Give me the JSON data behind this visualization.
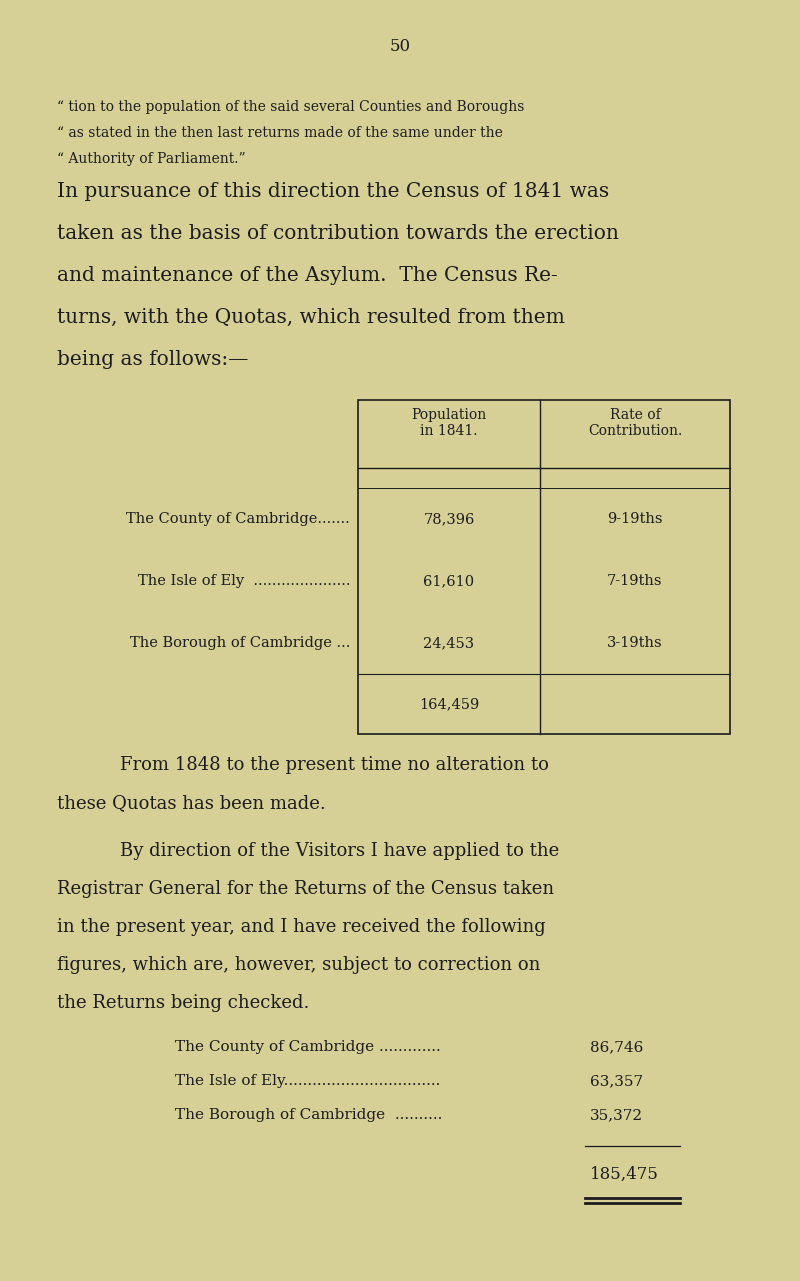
{
  "page_number": "50",
  "background_color": "#d6cf96",
  "text_color": "#1c1c1c",
  "page_width": 8.0,
  "page_height": 12.81,
  "dpi": 100,
  "small_text_lines": [
    "“ tion to the population of the said several Counties and Boroughs",
    "“ as stated in the then last returns made of the same under the",
    "“ Authority of Parliament.”"
  ],
  "large_para_lines": [
    "In pursuance of this direction the Census of 1841 was",
    "taken as the basis of contribution towards the erection",
    "and maintenance of the Asylum.  The Census Re-",
    "turns, with the Quotas, which resulted from them",
    "being as follows:—"
  ],
  "table_rows": [
    {
      "label": "The County of Cambridge.......",
      "pop": "78,396",
      "rate": "9-19ths"
    },
    {
      "label": "The Isle of Ely  .....................",
      "pop": "61,610",
      "rate": "7-19ths"
    },
    {
      "label": "The Borough of Cambridge ...",
      "pop": "24,453",
      "rate": "3-19ths"
    }
  ],
  "table_total": "164,459",
  "para2_lines": [
    "From 1848 to the present time no alteration to",
    "these Quotas has been made."
  ],
  "para3_lines": [
    "By direction of the Visitors I have applied to the",
    "Registrar General for the Returns of the Census taken",
    "in the present year, and I have received the following",
    "figures, which are, however, subject to correction on",
    "the Returns being checked."
  ],
  "list_items": [
    {
      "label": "The County of Cambridge .............",
      "value": "86,746"
    },
    {
      "label": "The Isle of Ely.................................",
      "value": "63,357"
    },
    {
      "label": "The Borough of Cambridge  ..........",
      "value": "35,372"
    }
  ],
  "list_total": "185,475"
}
